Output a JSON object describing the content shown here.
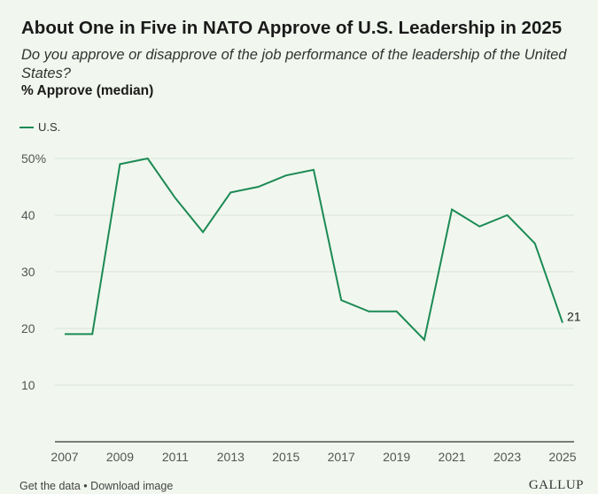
{
  "title": "About One in Five in NATO Approve of U.S. Leadership in 2025",
  "subtitle": "Do you approve or disapprove of the job performance of the leadership of the United States?",
  "measure_label": "% Approve (median)",
  "colors": {
    "series": "#1c8a55",
    "grid": "#d9e3d6",
    "axis": "#333333",
    "background": "#f1f7ee"
  },
  "footer": {
    "get_data": "Get the data",
    "separator": "•",
    "download": "Download image",
    "brand": "GALLUP"
  },
  "chart_data": {
    "type": "line",
    "title": "About One in Five in NATO Approve of U.S. Leadership in 2025",
    "subtitle": "Do you approve or disapprove of the job performance of the leadership of the United States?",
    "ylabel": "% Approve (median)",
    "xlabel": "",
    "x": [
      2007,
      2008,
      2009,
      2010,
      2011,
      2012,
      2013,
      2014,
      2015,
      2016,
      2017,
      2018,
      2019,
      2020,
      2021,
      2022,
      2023,
      2024,
      2025
    ],
    "series": [
      {
        "name": "U.S.",
        "values": [
          19,
          19,
          49,
          50,
          43,
          37,
          44,
          45,
          47,
          48,
          25,
          23,
          23,
          18,
          41,
          38,
          40,
          35,
          21
        ]
      }
    ],
    "ylim": [
      0,
      50
    ],
    "yticks": [
      10,
      20,
      30,
      40,
      50
    ],
    "ytick_labels": [
      "10",
      "20",
      "30",
      "40",
      "50%"
    ],
    "xticks": [
      2007,
      2009,
      2011,
      2013,
      2015,
      2017,
      2019,
      2021,
      2023,
      2025
    ],
    "xtick_labels": [
      "2007",
      "2009",
      "2011",
      "2013",
      "2015",
      "2017",
      "2019",
      "2021",
      "2023",
      "2025"
    ],
    "end_label": "21",
    "grid": true,
    "legend": "top-left"
  }
}
